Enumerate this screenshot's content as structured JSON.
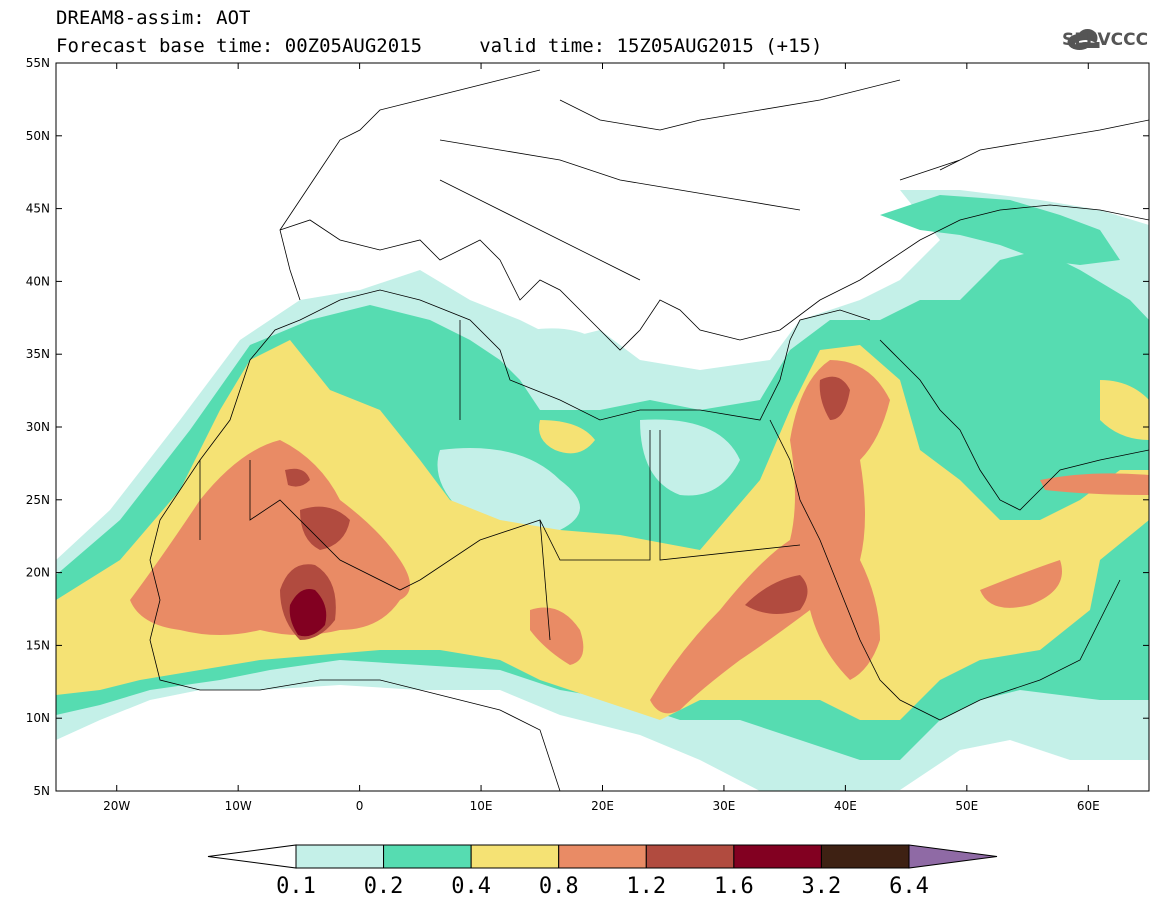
{
  "header": {
    "title_line_1": "DREAM8-assim: AOT",
    "title_line_2": "Forecast base time: 00Z05AUG2015     valid time: 15Z05AUG2015 (+15)"
  },
  "logo": {
    "text": "SEEVCCC",
    "icon": "cloud-logo-icon"
  },
  "map": {
    "lat_labels": [
      "55N",
      "50N",
      "45N",
      "40N",
      "35N",
      "30N",
      "25N",
      "20N",
      "15N",
      "10N",
      "5N"
    ],
    "lat_values": [
      55,
      50,
      45,
      40,
      35,
      30,
      25,
      20,
      15,
      10,
      5
    ],
    "lon_labels": [
      "20W",
      "10W",
      "0",
      "10E",
      "20E",
      "30E",
      "40E",
      "50E",
      "60E"
    ],
    "lon_values": [
      -20,
      -10,
      0,
      10,
      20,
      30,
      40,
      50,
      60
    ],
    "extent": {
      "lon_min": -25,
      "lon_max": 65,
      "lat_min": 5,
      "lat_max": 55
    }
  },
  "colorbar": {
    "labels": [
      "0.1",
      "0.2",
      "0.4",
      "0.8",
      "1.2",
      "1.6",
      "3.2",
      "6.4"
    ],
    "colors": [
      "#ffffff",
      "#c4f0e8",
      "#56dcb1",
      "#f5e274",
      "#e98b65",
      "#b14b3f",
      "#820021",
      "#3e2113",
      "#8f6aa5"
    ]
  }
}
